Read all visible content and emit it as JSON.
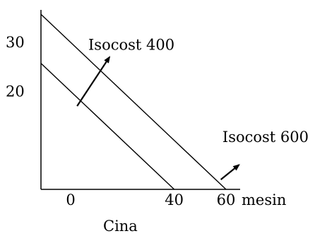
{
  "chart_data": {
    "type": "line",
    "xlabel": "mesin",
    "xlabel_below": "Cina",
    "ylabel": "",
    "xlim": [
      0,
      60
    ],
    "ylim": [
      0,
      30
    ],
    "x_ticks": [
      {
        "value": 0,
        "label": "0"
      },
      {
        "value": 40,
        "label": "40"
      },
      {
        "value": 60,
        "label": "60"
      }
    ],
    "y_ticks": [
      {
        "value": 30,
        "label": "30"
      },
      {
        "value": 20,
        "label": "20"
      }
    ],
    "series": [
      {
        "name": "Isocost 400",
        "x": [
          0,
          40
        ],
        "y": [
          20,
          0
        ]
      },
      {
        "name": "Isocost 600",
        "x": [
          0,
          60
        ],
        "y": [
          30,
          0
        ]
      }
    ],
    "annotations": [
      {
        "text": "Isocost 400",
        "from": [
          2.5,
          17
        ],
        "to": [
          15,
          27
        ]
      },
      {
        "text": "Isocost 600",
        "from": [
          58,
          2
        ],
        "to": [
          65,
          5
        ]
      }
    ],
    "grid": false,
    "legend": "none",
    "colors": {
      "line": "#000000",
      "text": "#000000",
      "background": "#ffffff"
    }
  }
}
